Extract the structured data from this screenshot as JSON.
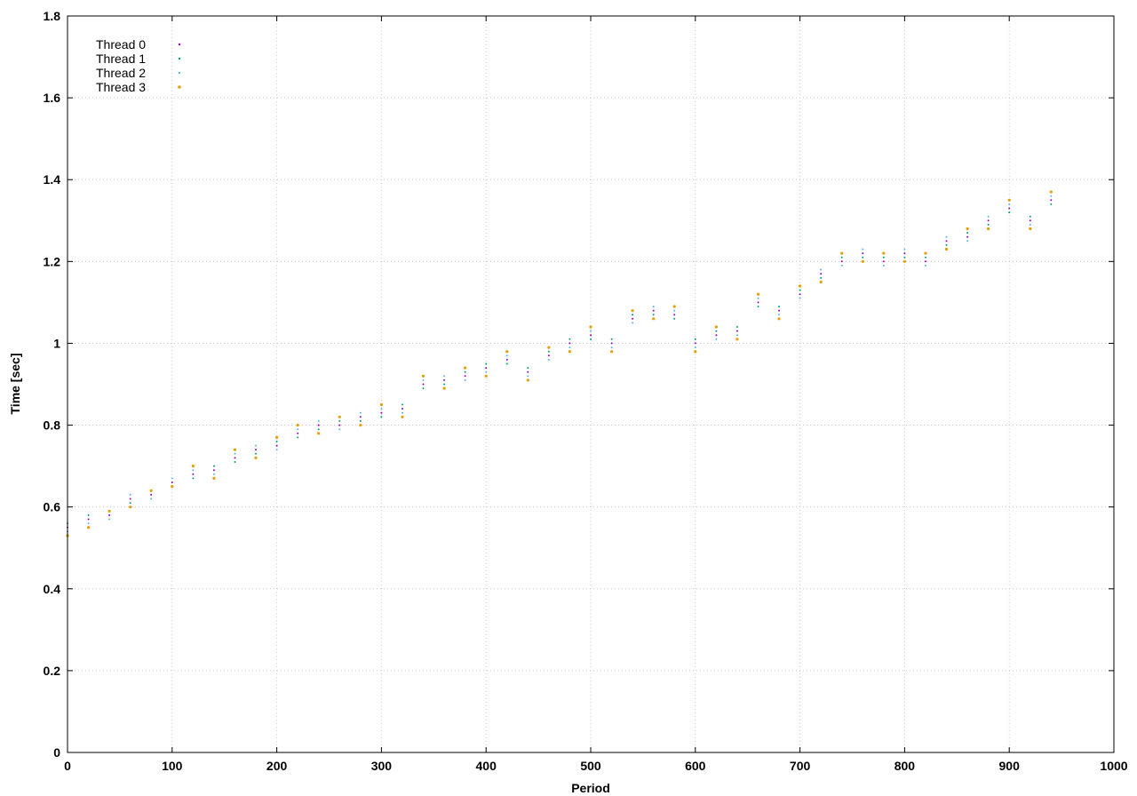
{
  "chart_data": {
    "type": "scatter",
    "title": "",
    "xlabel": "Period",
    "ylabel": "Time [sec]",
    "xlim": [
      0,
      1000
    ],
    "ylim": [
      0,
      1.8
    ],
    "xticks": [
      0,
      100,
      200,
      300,
      400,
      500,
      600,
      700,
      800,
      900,
      1000
    ],
    "yticks": [
      0,
      0.2,
      0.4,
      0.6,
      0.8,
      1,
      1.2,
      1.4,
      1.6,
      1.8
    ],
    "xtick_labels": [
      "0",
      "100",
      "200",
      "300",
      "400",
      "500",
      "600",
      "700",
      "800",
      "900",
      "1000"
    ],
    "ytick_labels": [
      "0",
      "0.2",
      "0.4",
      "0.6",
      "0.8",
      "1",
      "1.2",
      "1.4",
      "1.6",
      "1.8"
    ],
    "grid": true,
    "legend_position": "top-left",
    "series": [
      {
        "name": "Thread 0",
        "color": "#9400d3",
        "x": [
          0,
          20,
          40,
          60,
          80,
          100,
          120,
          140,
          160,
          180,
          200,
          220,
          240,
          260,
          280,
          300,
          320,
          340,
          360,
          380,
          400,
          420,
          440,
          460,
          480,
          500,
          520,
          540,
          560,
          580,
          600,
          620,
          640,
          660,
          680,
          700,
          720,
          740,
          760,
          780,
          800,
          820,
          840,
          860,
          880,
          900,
          920,
          940
        ],
        "y": [
          0.55,
          0.57,
          0.58,
          0.62,
          0.63,
          0.66,
          0.68,
          0.69,
          0.72,
          0.74,
          0.75,
          0.78,
          0.8,
          0.8,
          0.82,
          0.83,
          0.84,
          0.9,
          0.91,
          0.92,
          0.94,
          0.96,
          0.93,
          0.97,
          1.0,
          1.02,
          1.0,
          1.06,
          1.08,
          1.07,
          1.0,
          1.02,
          1.03,
          1.1,
          1.08,
          1.12,
          1.17,
          1.2,
          1.22,
          1.2,
          1.22,
          1.2,
          1.25,
          1.26,
          1.3,
          1.33,
          1.3,
          1.35
        ]
      },
      {
        "name": "Thread 1",
        "color": "#009e73",
        "x": [
          0,
          20,
          40,
          60,
          80,
          100,
          120,
          140,
          160,
          180,
          200,
          220,
          240,
          260,
          280,
          300,
          320,
          340,
          360,
          380,
          400,
          420,
          440,
          460,
          480,
          500,
          520,
          540,
          560,
          580,
          600,
          620,
          640,
          660,
          680,
          700,
          720,
          740,
          760,
          780,
          800,
          820,
          840,
          860,
          880,
          900,
          920,
          940
        ],
        "y": [
          0.56,
          0.58,
          0.59,
          0.61,
          0.64,
          0.65,
          0.67,
          0.7,
          0.71,
          0.73,
          0.76,
          0.77,
          0.79,
          0.81,
          0.81,
          0.82,
          0.85,
          0.89,
          0.9,
          0.93,
          0.95,
          0.95,
          0.94,
          0.98,
          1.01,
          1.01,
          1.01,
          1.07,
          1.07,
          1.06,
          1.01,
          1.03,
          1.04,
          1.09,
          1.09,
          1.13,
          1.16,
          1.21,
          1.21,
          1.21,
          1.21,
          1.21,
          1.24,
          1.27,
          1.29,
          1.32,
          1.31,
          1.34
        ]
      },
      {
        "name": "Thread 2",
        "color": "#56b4e9",
        "x": [
          0,
          20,
          40,
          60,
          80,
          100,
          120,
          140,
          160,
          180,
          200,
          220,
          240,
          260,
          280,
          300,
          320,
          340,
          360,
          380,
          400,
          420,
          440,
          460,
          480,
          500,
          520,
          540,
          560,
          580,
          600,
          620,
          640,
          660,
          680,
          700,
          720,
          740,
          760,
          780,
          800,
          820,
          840,
          860,
          880,
          900,
          920,
          940
        ],
        "y": [
          0.54,
          0.56,
          0.57,
          0.63,
          0.62,
          0.67,
          0.69,
          0.68,
          0.73,
          0.75,
          0.74,
          0.79,
          0.81,
          0.79,
          0.83,
          0.84,
          0.83,
          0.91,
          0.92,
          0.91,
          0.93,
          0.97,
          0.92,
          0.96,
          0.99,
          1.03,
          0.99,
          1.05,
          1.09,
          1.08,
          0.99,
          1.01,
          1.02,
          1.11,
          1.07,
          1.11,
          1.18,
          1.19,
          1.23,
          1.19,
          1.23,
          1.19,
          1.26,
          1.25,
          1.31,
          1.34,
          1.29,
          1.36
        ]
      },
      {
        "name": "Thread 3",
        "color": "#e69f00",
        "x": [
          0,
          20,
          40,
          60,
          80,
          100,
          120,
          140,
          160,
          180,
          200,
          220,
          240,
          260,
          280,
          300,
          320,
          340,
          360,
          380,
          400,
          420,
          440,
          460,
          480,
          500,
          520,
          540,
          560,
          580,
          600,
          620,
          640,
          660,
          680,
          700,
          720,
          740,
          760,
          780,
          800,
          820,
          840,
          860,
          880,
          900,
          920,
          940
        ],
        "y": [
          0.53,
          0.55,
          0.59,
          0.6,
          0.64,
          0.65,
          0.7,
          0.67,
          0.74,
          0.72,
          0.77,
          0.8,
          0.78,
          0.82,
          0.8,
          0.85,
          0.82,
          0.92,
          0.89,
          0.94,
          0.92,
          0.98,
          0.91,
          0.99,
          0.98,
          1.04,
          0.98,
          1.08,
          1.06,
          1.09,
          0.98,
          1.04,
          1.01,
          1.12,
          1.06,
          1.14,
          1.15,
          1.22,
          1.2,
          1.22,
          1.2,
          1.22,
          1.23,
          1.28,
          1.28,
          1.35,
          1.28,
          1.37
        ]
      }
    ]
  }
}
